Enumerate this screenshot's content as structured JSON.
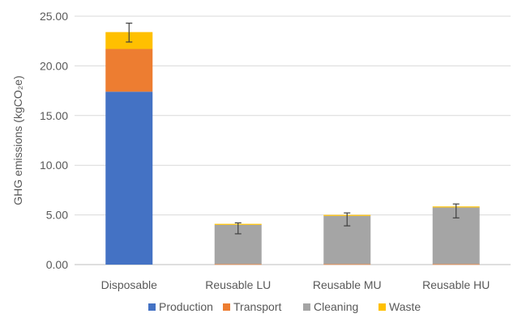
{
  "chart_data": {
    "type": "bar",
    "stacked": true,
    "title": "",
    "xlabel": "",
    "ylabel": "GHG emissions (kgCO₂e)",
    "ylim": [
      0,
      25
    ],
    "yticks": [
      "0.00",
      "5.00",
      "10.00",
      "15.00",
      "20.00",
      "25.00"
    ],
    "grid": true,
    "legend_position": "bottom",
    "categories": [
      "Disposable",
      "Reusable LU",
      "Reusable MU",
      "Reusable HU"
    ],
    "series": [
      {
        "name": "Production",
        "color": "#4472C4",
        "values": [
          17.4,
          0,
          0,
          0
        ]
      },
      {
        "name": "Transport",
        "color": "#ED7D31",
        "values": [
          4.3,
          0.05,
          0.05,
          0.05
        ]
      },
      {
        "name": "Cleaning",
        "color": "#A5A5A5",
        "values": [
          0,
          3.95,
          4.85,
          5.7
        ]
      },
      {
        "name": "Waste",
        "color": "#FFC000",
        "values": [
          1.7,
          0.1,
          0.1,
          0.1
        ]
      }
    ],
    "error_bars": [
      {
        "category": "Disposable",
        "low": 22.4,
        "high": 24.3
      },
      {
        "category": "Reusable LU",
        "low": 3.1,
        "high": 4.2
      },
      {
        "category": "Reusable MU",
        "low": 3.9,
        "high": 5.2
      },
      {
        "category": "Reusable HU",
        "low": 4.7,
        "high": 6.1
      }
    ]
  }
}
